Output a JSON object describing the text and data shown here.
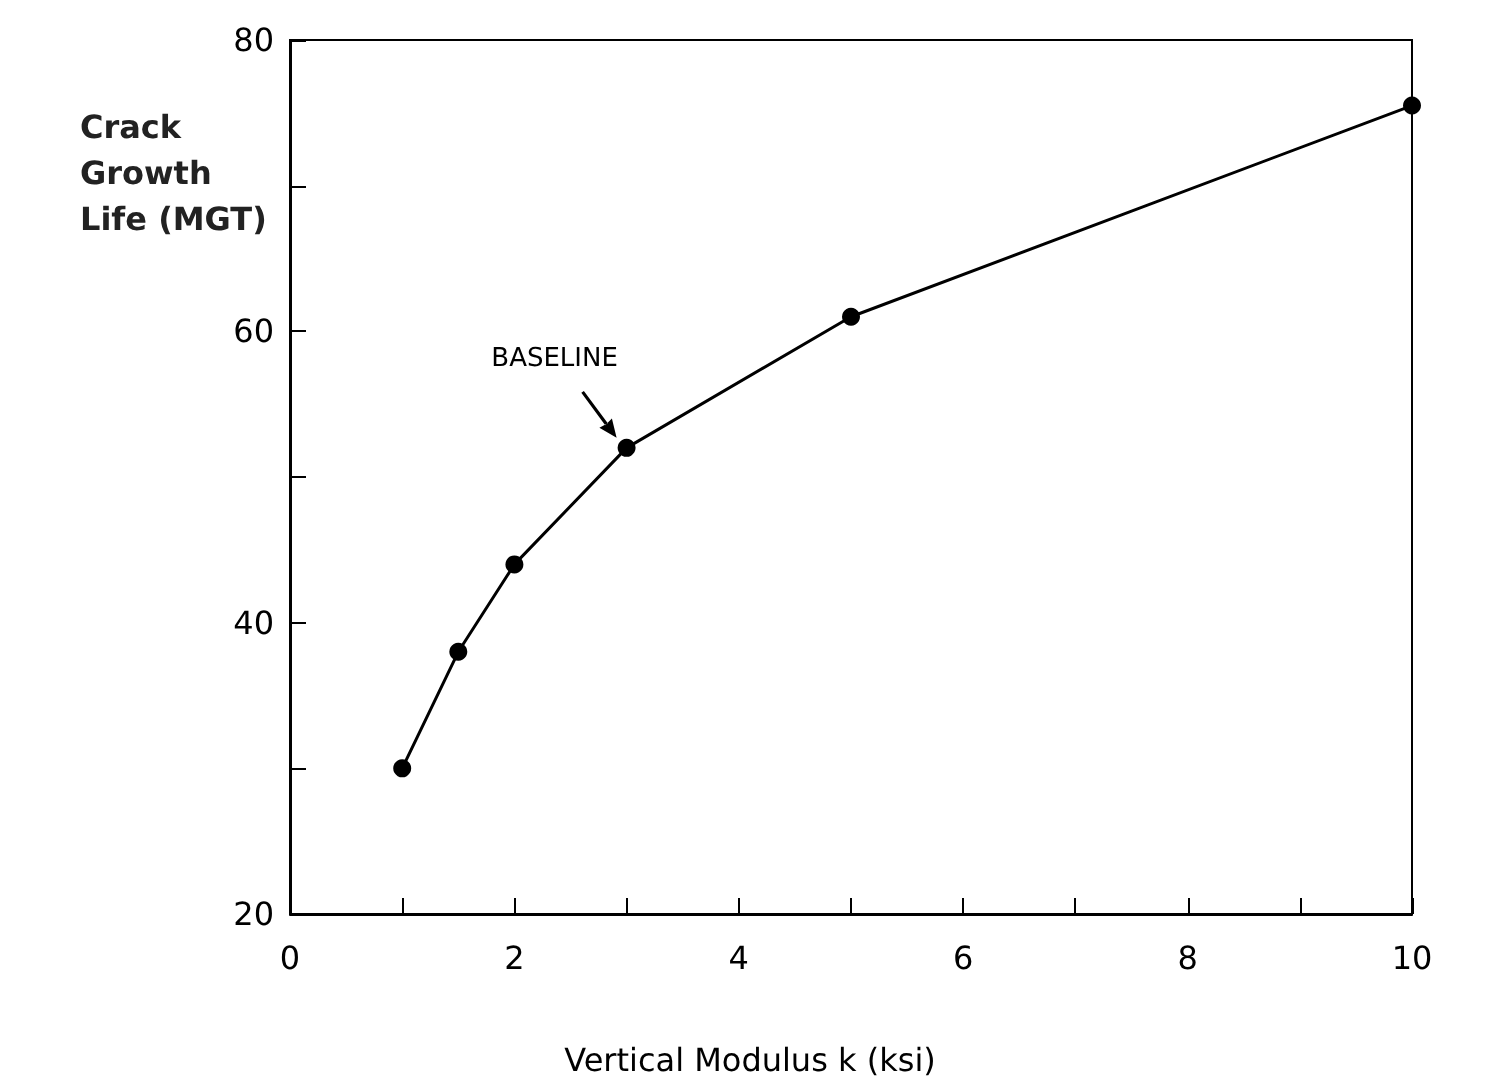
{
  "chart_data": {
    "type": "line",
    "xlabel": "Vertical Modulus k (ksi)",
    "ylabel": "Crack Growth Life (MGT)",
    "x": [
      1,
      1.5,
      2,
      3,
      5,
      10
    ],
    "series": [
      {
        "color": "#000000",
        "values": [
          30,
          38,
          44,
          52,
          61,
          75.5
        ]
      }
    ],
    "xlim": [
      0,
      10
    ],
    "xticks": [
      0,
      {
        "value": 1,
        "label": null
      },
      2,
      {
        "value": 3,
        "label": null
      },
      4,
      {
        "value": 5,
        "label": null
      },
      6,
      {
        "value": 7,
        "label": null
      },
      8,
      {
        "value": 9,
        "label": null
      },
      10
    ],
    "ylim": [
      20,
      80
    ],
    "yticks": [
      20,
      {
        "value": 30,
        "label": null
      },
      40,
      {
        "value": 50,
        "label": null
      },
      60,
      {
        "value": 70,
        "label": null
      },
      80
    ],
    "annotations": [
      {
        "text": "BASELINE",
        "x": 3,
        "y": 52
      }
    ],
    "grid": false,
    "marker": "circle",
    "line_style": "solid"
  }
}
